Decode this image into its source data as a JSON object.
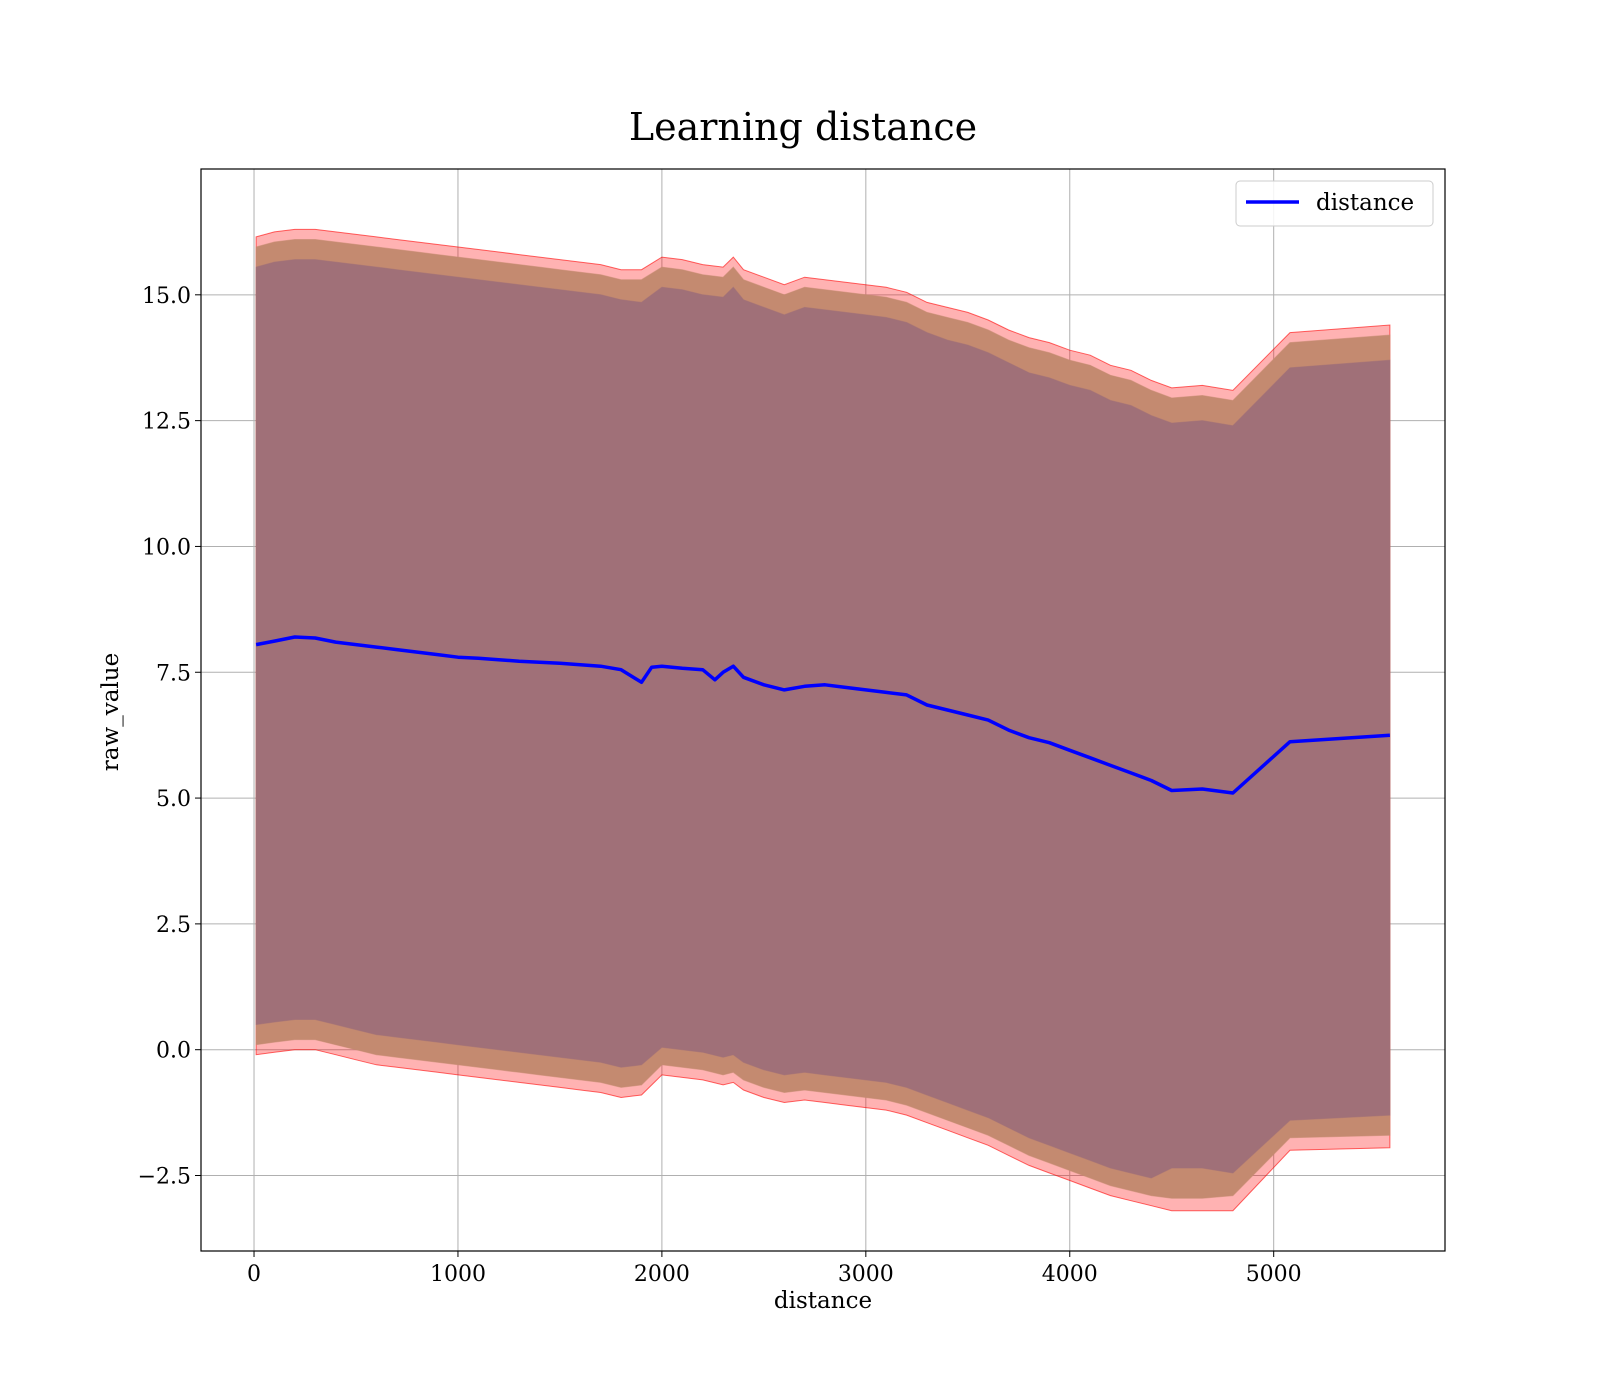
{
  "chart_data": {
    "type": "area",
    "title": "Learning distance",
    "xlabel": "distance",
    "ylabel": "raw_value",
    "xlim": [
      -260,
      5840
    ],
    "ylim": [
      -4.0,
      17.5
    ],
    "x_ticks": [
      0,
      1000,
      2000,
      3000,
      4000,
      5000
    ],
    "x_tick_labels": [
      "0",
      "1000",
      "2000",
      "3000",
      "4000",
      "5000"
    ],
    "y_ticks": [
      -2.5,
      0.0,
      2.5,
      5.0,
      7.5,
      10.0,
      12.5,
      15.0
    ],
    "y_tick_labels": [
      "−2.5",
      "0.0",
      "2.5",
      "5.0",
      "7.5",
      "10.0",
      "12.5",
      "15.0"
    ],
    "grid": true,
    "legend_position": "top-right",
    "series": [
      {
        "name": "distance",
        "color": "#0000ff",
        "x": [
          10,
          100,
          200,
          300,
          400,
          500,
          600,
          700,
          800,
          900,
          1000,
          1100,
          1200,
          1300,
          1400,
          1500,
          1600,
          1700,
          1800,
          1900,
          1950,
          2000,
          2100,
          2200,
          2260,
          2300,
          2350,
          2400,
          2500,
          2600,
          2700,
          2800,
          2900,
          3000,
          3100,
          3200,
          3300,
          3400,
          3500,
          3600,
          3700,
          3800,
          3900,
          4000,
          4100,
          4200,
          4300,
          4400,
          4500,
          4650,
          4800,
          5080,
          5570
        ],
        "y": [
          8.05,
          8.12,
          8.2,
          8.18,
          8.1,
          8.05,
          8.0,
          7.95,
          7.9,
          7.85,
          7.8,
          7.78,
          7.75,
          7.72,
          7.7,
          7.68,
          7.65,
          7.62,
          7.55,
          7.3,
          7.6,
          7.62,
          7.58,
          7.55,
          7.35,
          7.5,
          7.62,
          7.4,
          7.25,
          7.15,
          7.22,
          7.25,
          7.2,
          7.15,
          7.1,
          7.05,
          6.85,
          6.75,
          6.65,
          6.55,
          6.35,
          6.2,
          6.1,
          5.95,
          5.8,
          5.65,
          5.5,
          5.35,
          5.15,
          5.18,
          5.1,
          6.12,
          6.25
        ]
      }
    ],
    "bands": [
      {
        "color": "#ff0000",
        "x": [
          10,
          100,
          200,
          300,
          400,
          500,
          600,
          700,
          800,
          900,
          1000,
          1100,
          1200,
          1300,
          1400,
          1500,
          1600,
          1700,
          1800,
          1900,
          2000,
          2100,
          2200,
          2300,
          2350,
          2400,
          2500,
          2600,
          2700,
          2800,
          2900,
          3000,
          3100,
          3200,
          3300,
          3400,
          3500,
          3600,
          3700,
          3800,
          3900,
          4000,
          4100,
          4200,
          4300,
          4400,
          4500,
          4650,
          4800,
          5080,
          5570
        ],
        "upper": [
          16.15,
          16.25,
          16.3,
          16.3,
          16.25,
          16.2,
          16.15,
          16.1,
          16.05,
          16.0,
          15.95,
          15.9,
          15.85,
          15.8,
          15.75,
          15.7,
          15.65,
          15.6,
          15.5,
          15.5,
          15.75,
          15.7,
          15.6,
          15.55,
          15.75,
          15.5,
          15.35,
          15.2,
          15.35,
          15.3,
          15.25,
          15.2,
          15.15,
          15.05,
          14.85,
          14.75,
          14.65,
          14.5,
          14.3,
          14.15,
          14.05,
          13.9,
          13.8,
          13.6,
          13.5,
          13.3,
          13.15,
          13.2,
          13.1,
          14.25,
          14.4
        ],
        "lower": [
          -0.1,
          -0.05,
          0.0,
          0.0,
          -0.1,
          -0.2,
          -0.3,
          -0.35,
          -0.4,
          -0.45,
          -0.5,
          -0.55,
          -0.6,
          -0.65,
          -0.7,
          -0.75,
          -0.8,
          -0.85,
          -0.95,
          -0.9,
          -0.5,
          -0.55,
          -0.6,
          -0.7,
          -0.65,
          -0.8,
          -0.95,
          -1.05,
          -1.0,
          -1.05,
          -1.1,
          -1.15,
          -1.2,
          -1.3,
          -1.45,
          -1.6,
          -1.75,
          -1.9,
          -2.1,
          -2.3,
          -2.45,
          -2.6,
          -2.75,
          -2.9,
          -3.0,
          -3.1,
          -3.2,
          -3.2,
          -3.2,
          -2.0,
          -1.95
        ]
      },
      {
        "color": "#c48a70",
        "x": [
          10,
          100,
          200,
          300,
          400,
          500,
          600,
          700,
          800,
          900,
          1000,
          1100,
          1200,
          1300,
          1400,
          1500,
          1600,
          1700,
          1800,
          1900,
          2000,
          2100,
          2200,
          2300,
          2350,
          2400,
          2500,
          2600,
          2700,
          2800,
          2900,
          3000,
          3100,
          3200,
          3300,
          3400,
          3500,
          3600,
          3700,
          3800,
          3900,
          4000,
          4100,
          4200,
          4300,
          4400,
          4500,
          4650,
          4800,
          5080,
          5570
        ],
        "upper": [
          15.95,
          16.05,
          16.1,
          16.1,
          16.05,
          16.0,
          15.95,
          15.9,
          15.85,
          15.8,
          15.75,
          15.7,
          15.65,
          15.6,
          15.55,
          15.5,
          15.45,
          15.4,
          15.3,
          15.3,
          15.55,
          15.5,
          15.4,
          15.35,
          15.55,
          15.3,
          15.15,
          15.0,
          15.15,
          15.1,
          15.05,
          15.0,
          14.95,
          14.85,
          14.65,
          14.55,
          14.45,
          14.3,
          14.1,
          13.95,
          13.85,
          13.7,
          13.6,
          13.4,
          13.3,
          13.1,
          12.95,
          13.0,
          12.9,
          14.05,
          14.2
        ],
        "lower": [
          0.1,
          0.15,
          0.2,
          0.2,
          0.1,
          0.0,
          -0.1,
          -0.15,
          -0.2,
          -0.25,
          -0.3,
          -0.35,
          -0.4,
          -0.45,
          -0.5,
          -0.55,
          -0.6,
          -0.65,
          -0.75,
          -0.7,
          -0.3,
          -0.35,
          -0.4,
          -0.5,
          -0.45,
          -0.6,
          -0.75,
          -0.85,
          -0.8,
          -0.85,
          -0.9,
          -0.95,
          -1.0,
          -1.1,
          -1.25,
          -1.4,
          -1.55,
          -1.7,
          -1.9,
          -2.1,
          -2.25,
          -2.4,
          -2.55,
          -2.7,
          -2.8,
          -2.9,
          -2.95,
          -2.95,
          -2.9,
          -1.75,
          -1.7
        ]
      },
      {
        "color": "#a07078",
        "x": [
          10,
          100,
          200,
          300,
          400,
          500,
          600,
          700,
          800,
          900,
          1000,
          1100,
          1200,
          1300,
          1400,
          1500,
          1600,
          1700,
          1800,
          1900,
          2000,
          2100,
          2200,
          2300,
          2350,
          2400,
          2500,
          2600,
          2700,
          2800,
          2900,
          3000,
          3100,
          3200,
          3300,
          3400,
          3500,
          3600,
          3700,
          3800,
          3900,
          4000,
          4100,
          4200,
          4300,
          4400,
          4500,
          4650,
          4800,
          5080,
          5570
        ],
        "upper": [
          15.55,
          15.65,
          15.7,
          15.7,
          15.65,
          15.6,
          15.55,
          15.5,
          15.45,
          15.4,
          15.35,
          15.3,
          15.25,
          15.2,
          15.15,
          15.1,
          15.05,
          15.0,
          14.9,
          14.85,
          15.15,
          15.1,
          15.0,
          14.95,
          15.15,
          14.9,
          14.75,
          14.6,
          14.75,
          14.7,
          14.65,
          14.6,
          14.55,
          14.45,
          14.25,
          14.1,
          14.0,
          13.85,
          13.65,
          13.45,
          13.35,
          13.2,
          13.1,
          12.9,
          12.8,
          12.6,
          12.45,
          12.5,
          12.4,
          13.55,
          13.7
        ],
        "lower": [
          0.5,
          0.55,
          0.6,
          0.6,
          0.5,
          0.4,
          0.3,
          0.25,
          0.2,
          0.15,
          0.1,
          0.05,
          0.0,
          -0.05,
          -0.1,
          -0.15,
          -0.2,
          -0.25,
          -0.35,
          -0.3,
          0.05,
          0.0,
          -0.05,
          -0.15,
          -0.1,
          -0.25,
          -0.4,
          -0.5,
          -0.45,
          -0.5,
          -0.55,
          -0.6,
          -0.65,
          -0.75,
          -0.9,
          -1.05,
          -1.2,
          -1.35,
          -1.55,
          -1.75,
          -1.9,
          -2.05,
          -2.2,
          -2.35,
          -2.45,
          -2.55,
          -2.35,
          -2.35,
          -2.45,
          -1.4,
          -1.3
        ]
      }
    ]
  }
}
